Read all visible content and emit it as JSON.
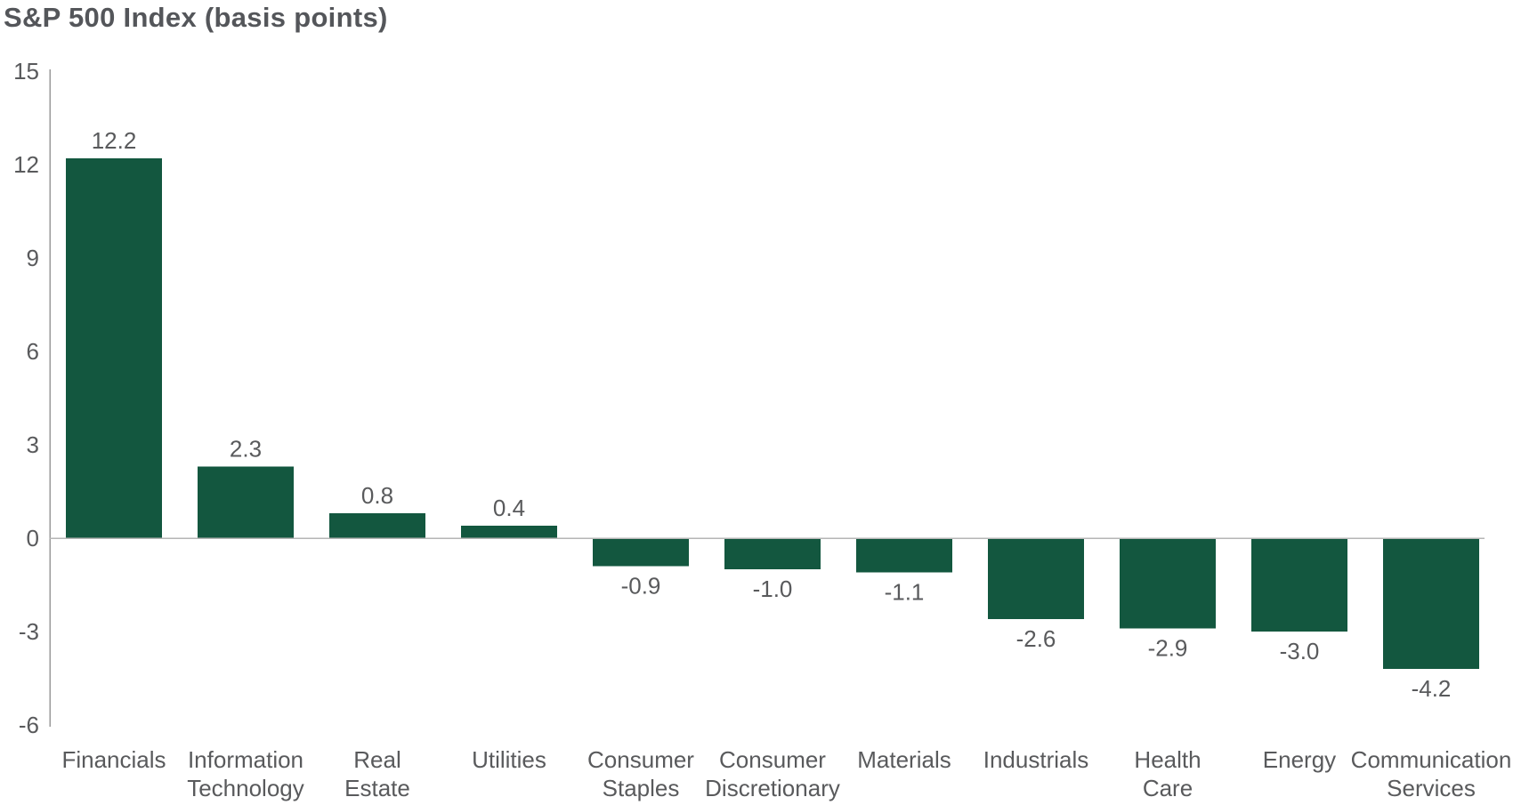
{
  "page": {
    "title": "S&P 500 Index (basis points)"
  },
  "colors": {
    "bar": "#13573F",
    "title_text": "#54565A",
    "label_text": "#595A5C",
    "axis_line": "#9A9A9A",
    "zero_line": "#B6B6B6"
  },
  "chart_data": {
    "type": "bar",
    "title": "S&P 500 Index (basis points)",
    "categories": [
      "Financials",
      "Information Technology",
      "Real Estate",
      "Utilities",
      "Consumer Staples",
      "Consumer Discretionary",
      "Materials",
      "Industrials",
      "Health Care",
      "Energy",
      "Communication Services"
    ],
    "values": [
      12.2,
      2.3,
      0.8,
      0.4,
      -0.9,
      -1.0,
      -1.1,
      -2.6,
      -2.9,
      -3.0,
      -4.2
    ],
    "value_labels": [
      "12.2",
      "2.3",
      "0.8",
      "0.4",
      "-0.9",
      "-1.0",
      "-1.1",
      "-2.6",
      "-2.9",
      "-3.0",
      "-4.2"
    ],
    "category_lines": [
      [
        "Financials"
      ],
      [
        "Information",
        "Technology"
      ],
      [
        "Real",
        "Estate"
      ],
      [
        "Utilities"
      ],
      [
        "Consumer",
        "Staples"
      ],
      [
        "Consumer",
        "Discretionary"
      ],
      [
        "Materials"
      ],
      [
        "Industrials"
      ],
      [
        "Health",
        "Care"
      ],
      [
        "Energy"
      ],
      [
        "Communication",
        "Services"
      ]
    ],
    "y_ticks": [
      15,
      12,
      9,
      6,
      3,
      0,
      -3,
      -6
    ],
    "ylim": [
      -6,
      15
    ],
    "xlabel": "",
    "ylabel": "",
    "grid": "zero-line-only",
    "legend": "none",
    "bar_color": "#13573F"
  }
}
